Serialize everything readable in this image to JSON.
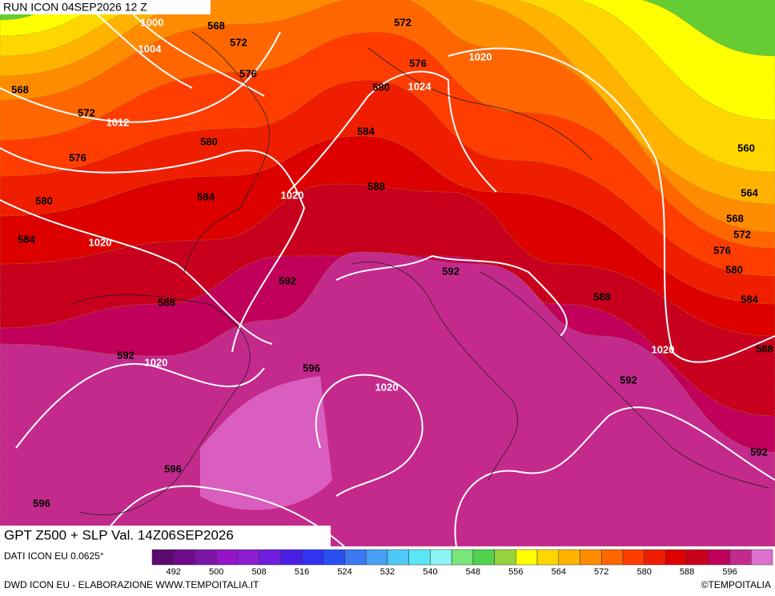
{
  "header": {
    "run": "RUN ICON 04SEP2026 12 Z"
  },
  "map": {
    "title": "GPT Z500 + SLP Val. 14Z06SEP2026",
    "contour_labels": [
      "1000",
      "568",
      "572",
      "1004",
      "568",
      "572",
      "1012",
      "576",
      "580",
      "576",
      "584",
      "1020",
      "580",
      "584",
      "1020",
      "592",
      "588",
      "592",
      "1020",
      "596",
      "1020",
      "596",
      "596",
      "572",
      "576",
      "1020",
      "580",
      "1024",
      "584",
      "588",
      "592",
      "560",
      "564",
      "568",
      "572",
      "576",
      "580",
      "588",
      "584",
      "1020",
      "588",
      "592",
      "592"
    ]
  },
  "colorbar": {
    "colors": [
      "#5a0a6e",
      "#6e0a8c",
      "#7d14a8",
      "#9614c8",
      "#8c1ed2",
      "#6e1edc",
      "#4b1ee6",
      "#3232f0",
      "#2850f0",
      "#3c78f0",
      "#46a0f5",
      "#50c8f5",
      "#5ae6f5",
      "#8cf5f5",
      "#78e678",
      "#50d250",
      "#96d23c",
      "#ffff00",
      "#ffd700",
      "#ffb300",
      "#ff8c00",
      "#ff6600",
      "#ff3d00",
      "#f01e00",
      "#dc0000",
      "#c8001e",
      "#c0005a",
      "#c42a8c",
      "#e070d0"
    ],
    "labels": [
      492,
      500,
      508,
      516,
      524,
      532,
      540,
      548,
      556,
      564,
      572,
      580,
      588,
      596
    ]
  },
  "footer": {
    "source": "DATI ICON EU 0.0625°",
    "credit": "DWD ICON EU - ELABORAZIONE WWW.TEMPOITALIA.IT",
    "copyright": "©TEMPOITALIA"
  }
}
